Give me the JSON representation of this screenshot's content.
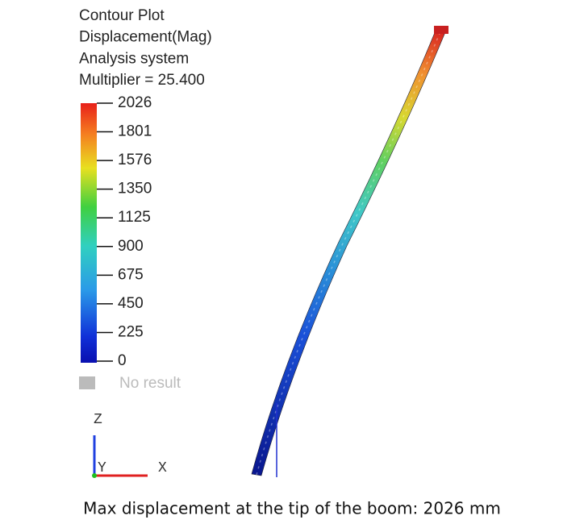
{
  "legend": {
    "lines": [
      "Contour Plot",
      "Displacement(Mag)",
      "Analysis system",
      "Multiplier = 25.400"
    ],
    "ticks": [
      "2026",
      "1801",
      "1576",
      "1350",
      "1125",
      "900",
      "675",
      "450",
      "225",
      "0"
    ],
    "no_result": "No result"
  },
  "axes": {
    "z": "Z",
    "y": "Y",
    "x": "X"
  },
  "caption": "Max displacement at the tip of the boom:  2026 mm"
}
